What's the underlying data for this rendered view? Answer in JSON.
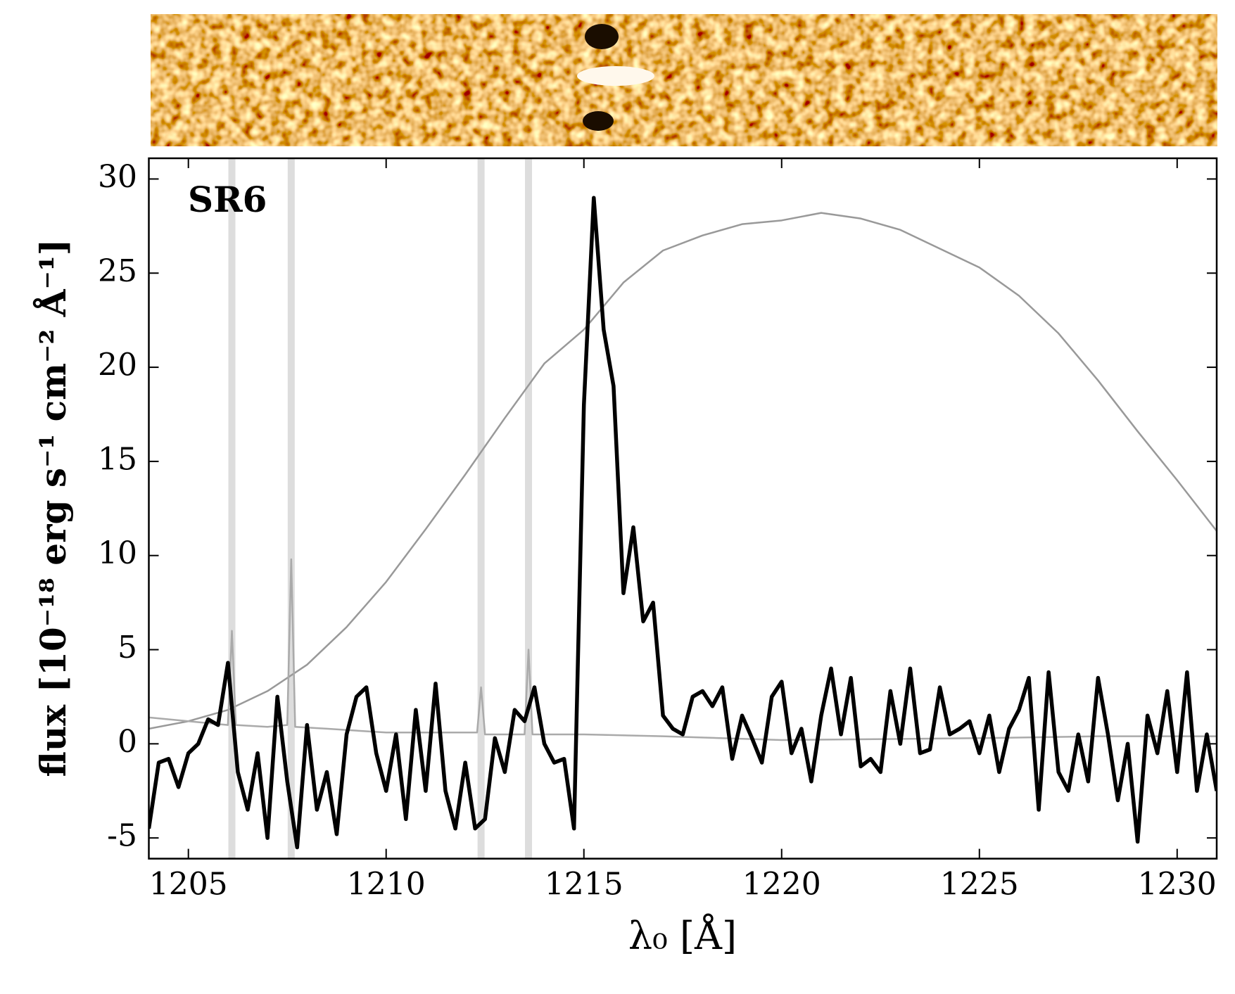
{
  "chart_data": {
    "type": "line",
    "annotation": "SR6",
    "xlabel": "λ₀ [Å]",
    "ylabel": "flux [10⁻¹⁸ erg s⁻¹ cm⁻² Å⁻¹]",
    "xlim": [
      1204,
      1231
    ],
    "ylim": [
      -6.1,
      31.1
    ],
    "xticks": [
      1205,
      1210,
      1215,
      1220,
      1225,
      1230
    ],
    "yticks": [
      -5,
      0,
      5,
      10,
      15,
      20,
      25,
      30
    ],
    "bands": [
      1206.1,
      1207.6,
      1212.4,
      1213.6
    ],
    "band_color": "#dddddd",
    "series": [
      {
        "color": "#999999",
        "width": 2.5,
        "x": [
          1204,
          1205,
          1206,
          1207,
          1208,
          1209,
          1210,
          1211,
          1212,
          1213,
          1214,
          1215,
          1216,
          1217,
          1218,
          1219,
          1220,
          1221,
          1222,
          1223,
          1224,
          1225,
          1226,
          1227,
          1228,
          1229,
          1230,
          1231
        ],
        "values": [
          0.8,
          1.2,
          1.8,
          2.8,
          4.2,
          6.2,
          8.6,
          11.4,
          14.3,
          17.3,
          20.2,
          22.0,
          24.5,
          26.2,
          27.0,
          27.6,
          27.8,
          28.2,
          27.9,
          27.3,
          26.3,
          25.3,
          23.8,
          21.8,
          19.3,
          16.6,
          14.0,
          11.3
        ]
      },
      {
        "color": "#aaaaaa",
        "width": 2.5,
        "x": [
          1204,
          1205,
          1206,
          1206.1,
          1206.2,
          1207,
          1207.5,
          1207.6,
          1207.7,
          1208.5,
          1210,
          1212.3,
          1212.4,
          1212.5,
          1213.5,
          1213.6,
          1213.7,
          1215,
          1217,
          1220,
          1225,
          1228,
          1231
        ],
        "values": [
          1.4,
          1.2,
          1.0,
          6.0,
          1.0,
          0.9,
          1.0,
          9.8,
          0.9,
          0.8,
          0.6,
          0.6,
          3.0,
          0.5,
          0.5,
          5.0,
          0.5,
          0.5,
          0.4,
          0.2,
          0.3,
          0.4,
          0.4
        ]
      },
      {
        "color": "#000000",
        "width": 5.5,
        "x": [
          1204,
          1204.25,
          1204.5,
          1204.75,
          1205,
          1205.25,
          1205.5,
          1205.75,
          1206,
          1206.25,
          1206.5,
          1206.75,
          1207,
          1207.25,
          1207.5,
          1207.75,
          1208,
          1208.25,
          1208.5,
          1208.75,
          1209,
          1209.25,
          1209.5,
          1209.75,
          1210,
          1210.25,
          1210.5,
          1210.75,
          1211,
          1211.25,
          1211.5,
          1211.75,
          1212,
          1212.25,
          1212.5,
          1212.75,
          1213,
          1213.25,
          1213.5,
          1213.75,
          1214,
          1214.25,
          1214.5,
          1214.75,
          1215,
          1215.25,
          1215.5,
          1215.75,
          1216,
          1216.25,
          1216.5,
          1216.75,
          1217,
          1217.25,
          1217.5,
          1217.75,
          1218,
          1218.25,
          1218.5,
          1218.75,
          1219,
          1219.25,
          1219.5,
          1219.75,
          1220,
          1220.25,
          1220.5,
          1220.75,
          1221,
          1221.25,
          1221.5,
          1221.75,
          1222,
          1222.25,
          1222.5,
          1222.75,
          1223,
          1223.25,
          1223.5,
          1223.75,
          1224,
          1224.25,
          1224.5,
          1224.75,
          1225,
          1225.25,
          1225.5,
          1225.75,
          1226,
          1226.25,
          1226.5,
          1226.75,
          1227,
          1227.25,
          1227.5,
          1227.75,
          1228,
          1228.25,
          1228.5,
          1228.75,
          1229,
          1229.25,
          1229.5,
          1229.75,
          1230,
          1230.25,
          1230.5,
          1230.75,
          1231
        ],
        "values": [
          -4.5,
          -1.0,
          -0.8,
          -2.3,
          -0.5,
          0.0,
          1.3,
          1.0,
          4.3,
          -1.5,
          -3.5,
          -0.5,
          -5.0,
          2.5,
          -2.0,
          -5.5,
          1.0,
          -3.5,
          -1.5,
          -4.8,
          0.5,
          2.5,
          3.0,
          -0.5,
          -2.5,
          0.5,
          -4.0,
          1.8,
          -2.5,
          3.2,
          -2.5,
          -4.5,
          -1.0,
          -4.5,
          -4.0,
          0.3,
          -1.5,
          1.8,
          1.2,
          3.0,
          0.0,
          -1.0,
          -0.8,
          -4.5,
          18.0,
          29.0,
          22.0,
          19.0,
          8.0,
          11.5,
          6.5,
          7.5,
          1.5,
          0.8,
          0.5,
          2.5,
          2.8,
          2.0,
          3.0,
          -0.8,
          1.5,
          0.3,
          -1.0,
          2.5,
          3.3,
          -0.5,
          0.8,
          -2.0,
          1.5,
          4.0,
          0.5,
          3.5,
          -1.2,
          -0.8,
          -1.5,
          2.8,
          0.0,
          4.0,
          -0.5,
          -0.3,
          3.0,
          0.5,
          0.8,
          1.2,
          -0.5,
          1.5,
          -1.5,
          0.8,
          1.8,
          3.5,
          -3.5,
          3.8,
          -1.5,
          -2.5,
          0.5,
          -2.0,
          3.5,
          0.5,
          -3.0,
          0.0,
          -5.2,
          1.5,
          -0.5,
          2.8,
          -1.5,
          3.8,
          -2.5,
          0.5,
          -2.5
        ]
      }
    ]
  }
}
